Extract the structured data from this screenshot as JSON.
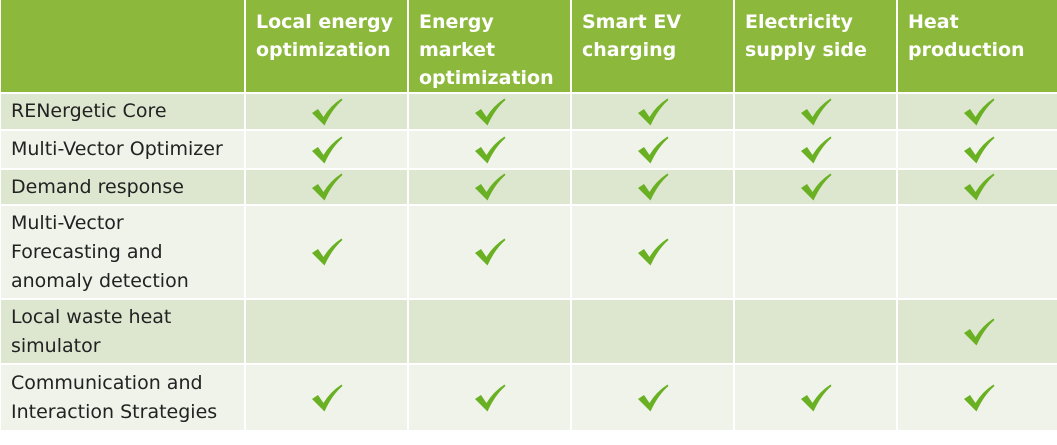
{
  "table": {
    "header": {
      "corner": "",
      "columns": [
        "Local energy optimization",
        "Energy market optimization",
        "Smart EV charging",
        "Electricity supply side",
        "Heat production"
      ]
    },
    "rows": [
      {
        "label": "RENergetic Core",
        "checks": [
          true,
          true,
          true,
          true,
          true
        ]
      },
      {
        "label": "Multi-Vector Optimizer",
        "checks": [
          true,
          true,
          true,
          true,
          true
        ]
      },
      {
        "label": "Demand response",
        "checks": [
          true,
          true,
          true,
          true,
          true
        ]
      },
      {
        "label": "Multi-Vector Forecasting and anomaly detection",
        "checks": [
          true,
          true,
          true,
          false,
          false
        ]
      },
      {
        "label": "Local waste heat simulator",
        "checks": [
          false,
          false,
          false,
          false,
          true
        ]
      },
      {
        "label": "Communication and Interaction Strategies",
        "checks": [
          true,
          true,
          true,
          true,
          true
        ]
      }
    ]
  },
  "colors": {
    "header_bg": "#8cb83c",
    "header_text": "#ffffff",
    "row_odd_bg": "#dde7d0",
    "row_even_bg": "#eff3e9",
    "check_color": "#6ab023"
  },
  "icons": {
    "check": "check-icon"
  }
}
